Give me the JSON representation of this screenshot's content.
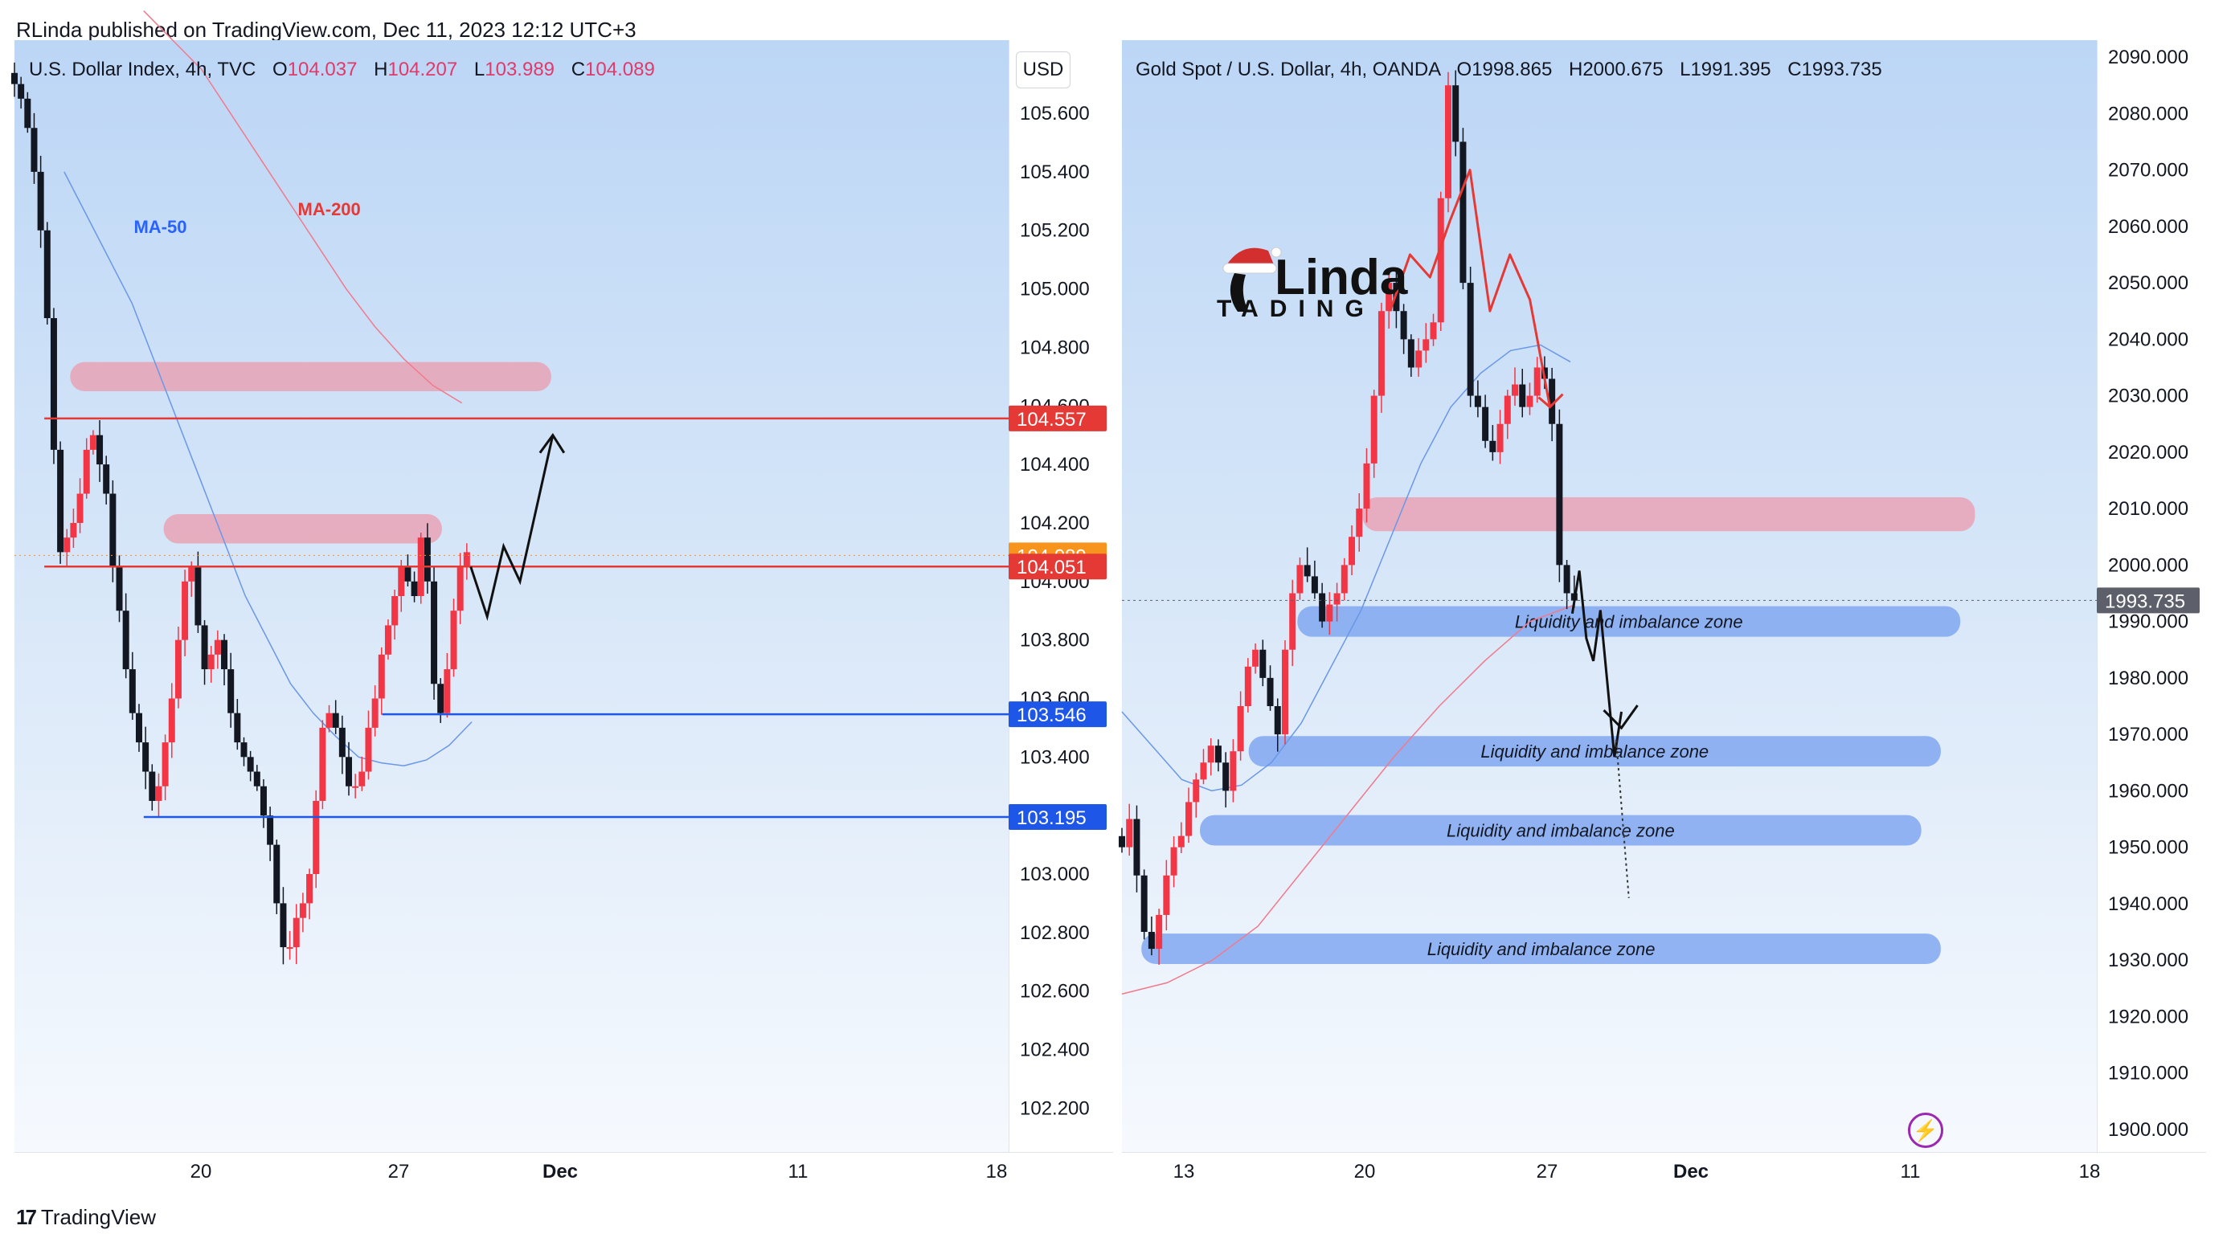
{
  "header": "RLinda published on TradingView.com, Dec 11, 2023 12:12 UTC+3",
  "footer": {
    "brand": "TradingView",
    "logo": "17"
  },
  "brand_logo": {
    "text": "Linda",
    "sub": "ADING"
  },
  "colors": {
    "bull": "#f23645",
    "bear": "#131722",
    "resistance": "#e53935",
    "support": "#1e56e8",
    "zone_red": "#e8a3b5",
    "zone_blue": "#7aa2f0",
    "ma50": "#6a97e6",
    "ma200": "#f07a8c",
    "last_price": "#f7941d"
  },
  "icons": {
    "flash": "flash-icon",
    "logo": "tradingview-logo-icon"
  },
  "chart_data": [
    {
      "type": "candlestick",
      "symbol": "U.S. Dollar Index, 4h, TVC",
      "ohlc": {
        "open": "104.037",
        "high": "104.207",
        "low": "103.989",
        "close": "104.089"
      },
      "currency": "USD",
      "ylim": [
        102.05,
        105.85
      ],
      "price_ticks": [
        "105.600",
        "105.400",
        "105.200",
        "105.000",
        "104.800",
        "104.600",
        "104.400",
        "104.200",
        "104.000",
        "103.800",
        "103.600",
        "103.400",
        "103.200",
        "103.000",
        "102.800",
        "102.600",
        "102.400",
        "102.200"
      ],
      "x_ticks": [
        "20",
        "27",
        "Dec",
        "11",
        "18"
      ],
      "price_labels": [
        {
          "value": 104.557,
          "label": "104.557",
          "color": "#e53935"
        },
        {
          "value": 104.089,
          "label": "104.089",
          "color": "#f7941d"
        },
        {
          "value": 104.051,
          "label": "104.051",
          "color": "#e53935"
        },
        {
          "value": 103.546,
          "label": "103.546",
          "color": "#1e56e8"
        },
        {
          "value": 103.195,
          "label": "103.195",
          "color": "#1e56e8"
        }
      ],
      "annotations": [
        {
          "text": "MA-50",
          "color": "#2962ff"
        },
        {
          "text": "MA-200",
          "color": "#e53935"
        }
      ],
      "zones": [
        {
          "from": 104.65,
          "to": 104.75,
          "color": "#e8a3b5"
        },
        {
          "from": 104.13,
          "to": 104.23,
          "color": "#e8a3b5"
        }
      ],
      "close_path": [
        105.7,
        105.65,
        105.55,
        105.4,
        105.2,
        104.9,
        104.45,
        104.1,
        104.15,
        104.2,
        104.3,
        104.45,
        104.5,
        104.4,
        104.3,
        104.05,
        103.9,
        103.7,
        103.55,
        103.45,
        103.35,
        103.25,
        103.3,
        103.45,
        103.6,
        103.8,
        104.0,
        104.05,
        103.85,
        103.7,
        103.75,
        103.8,
        103.7,
        103.55,
        103.45,
        103.4,
        103.35,
        103.3,
        103.2,
        103.1,
        102.9,
        102.75,
        102.75,
        102.85,
        102.9,
        103.0,
        103.25,
        103.5,
        103.55,
        103.5,
        103.4,
        103.3,
        103.3,
        103.35,
        103.5,
        103.6,
        103.75,
        103.85,
        103.95,
        104.05,
        104.0,
        103.95,
        104.15,
        104.0,
        103.65,
        103.55,
        103.7,
        103.9,
        104.05,
        104.1
      ],
      "ma50": [
        105.4,
        105.25,
        105.1,
        104.95,
        104.75,
        104.55,
        104.35,
        104.15,
        103.95,
        103.8,
        103.65,
        103.55,
        103.47,
        103.4,
        103.38,
        103.37,
        103.39,
        103.44,
        103.52
      ],
      "ma200": [
        105.95,
        105.85,
        105.75,
        105.6,
        105.45,
        105.3,
        105.15,
        105.0,
        104.87,
        104.76,
        104.67,
        104.61
      ],
      "projection": [
        104.05,
        103.88,
        104.12,
        104.0,
        104.25,
        104.5
      ]
    },
    {
      "type": "candlestick",
      "symbol": "Gold Spot / U.S. Dollar, 4h, OANDA",
      "ohlc": {
        "open": "1998.865",
        "high": "2000.675",
        "low": "1991.395",
        "close": "1993.735"
      },
      "ylim": [
        1896,
        2093
      ],
      "price_ticks": [
        "2090.000",
        "2080.000",
        "2070.000",
        "2060.000",
        "2050.000",
        "2040.000",
        "2030.000",
        "2020.000",
        "2010.000",
        "2000.000",
        "1990.000",
        "1980.000",
        "1970.000",
        "1960.000",
        "1950.000",
        "1940.000",
        "1930.000",
        "1920.000",
        "1910.000",
        "1900.000"
      ],
      "x_ticks": [
        "13",
        "20",
        "27",
        "Dec",
        "11",
        "18"
      ],
      "price_labels": [
        {
          "value": 1993.735,
          "label": "1993.735",
          "color": "#5d606b"
        }
      ],
      "zones": [
        {
          "center": 1990,
          "label": "Liquidity and imbalance zone"
        },
        {
          "center": 1967,
          "label": "Liquidity and imbalance zone"
        },
        {
          "center": 1953,
          "label": "Liquidity and imbalance zone"
        },
        {
          "center": 1932,
          "label": "Liquidity and imbalance zone"
        }
      ],
      "red_zone": {
        "from": 2006,
        "to": 2012
      },
      "close_path": [
        1950,
        1955,
        1945,
        1935,
        1932,
        1938,
        1945,
        1950,
        1952,
        1958,
        1962,
        1965,
        1968,
        1965,
        1960,
        1967,
        1975,
        1982,
        1985,
        1980,
        1975,
        1970,
        1985,
        1995,
        2000,
        1998,
        1995,
        1990,
        1993,
        1995,
        2000,
        2005,
        2010,
        2018,
        2030,
        2045,
        2050,
        2045,
        2040,
        2035,
        2038,
        2040,
        2043,
        2065,
        2085,
        2075,
        2050,
        2030,
        2028,
        2022,
        2020,
        2025,
        2030,
        2032,
        2028,
        2030,
        2035,
        2033,
        2025,
        2000,
        1995,
        1993.7
      ],
      "ma50": [
        1974,
        1968,
        1962,
        1960,
        1961,
        1965,
        1972,
        1982,
        1992,
        2005,
        2018,
        2028,
        2034,
        2038,
        2039,
        2036
      ],
      "ma200": [
        1924,
        1926,
        1930,
        1936,
        1946,
        1956,
        1966,
        1975,
        1983,
        1990,
        1993
      ],
      "projection": [
        1991.4,
        1999,
        1987,
        1983,
        1992,
        1979,
        1966,
        1974
      ],
      "projection_dotted": [
        1969,
        1941
      ],
      "scenario_curve": [
        2045,
        2055,
        2051,
        2061,
        2070,
        2045,
        2055,
        2047,
        2028
      ]
    }
  ]
}
